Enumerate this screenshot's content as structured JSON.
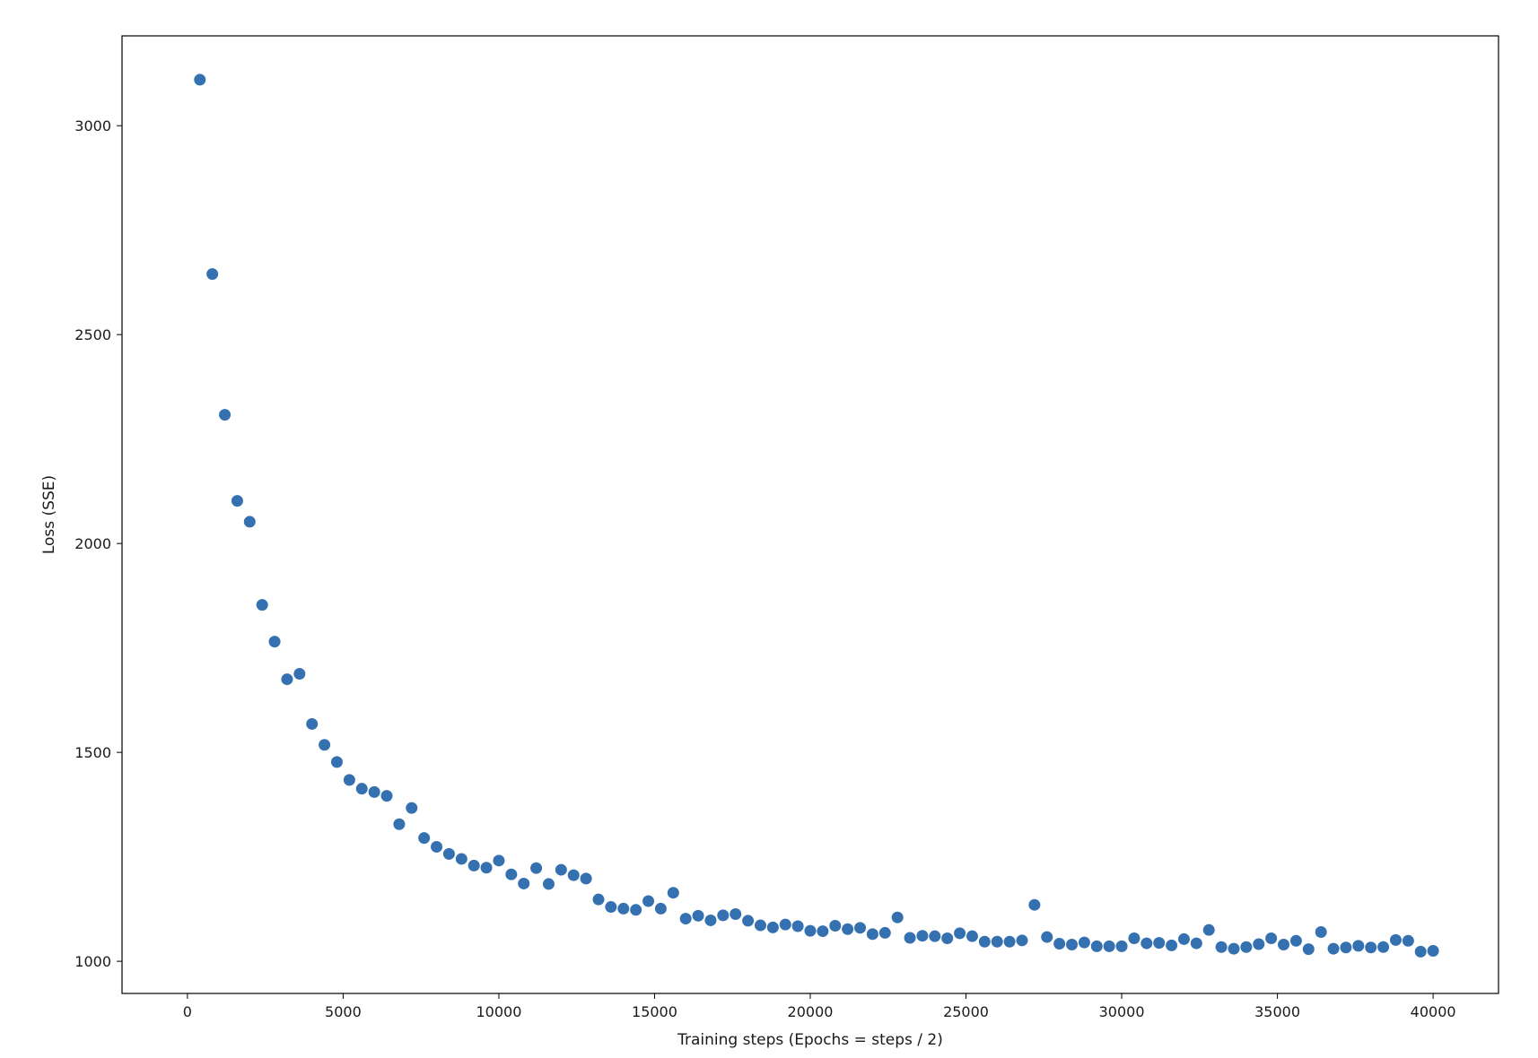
{
  "chart_data": {
    "type": "scatter",
    "title": "",
    "xlabel": "Training steps (Epochs = steps / 2)",
    "ylabel": "Loss (SSE)",
    "xlim": [
      -2100,
      42100
    ],
    "ylim": [
      923,
      3215
    ],
    "xticks": [
      0,
      5000,
      10000,
      15000,
      20000,
      25000,
      30000,
      35000,
      40000
    ],
    "yticks": [
      1000,
      1500,
      2000,
      2500,
      3000
    ],
    "grid": false,
    "legend": "none",
    "marker_color": "#3571b0",
    "x": [
      400,
      800,
      1200,
      1600,
      2000,
      2400,
      2800,
      3200,
      3600,
      4000,
      4400,
      4800,
      5200,
      5600,
      6000,
      6400,
      6800,
      7200,
      7600,
      8000,
      8400,
      8800,
      9200,
      9600,
      10000,
      10400,
      10800,
      11200,
      11600,
      12000,
      12400,
      12800,
      13200,
      13600,
      14000,
      14400,
      14800,
      15200,
      15600,
      16000,
      16400,
      16800,
      17200,
      17600,
      18000,
      18400,
      18800,
      19200,
      19600,
      20000,
      20400,
      20800,
      21200,
      21600,
      22000,
      22400,
      22800,
      23200,
      23600,
      24000,
      24400,
      24800,
      25200,
      25600,
      26000,
      26400,
      26800,
      27200,
      27600,
      28000,
      28400,
      28800,
      29200,
      29600,
      30000,
      30400,
      30800,
      31200,
      31600,
      32000,
      32400,
      32800,
      33200,
      33600,
      34000,
      34400,
      34800,
      35200,
      35600,
      36000,
      36400,
      36800,
      37200,
      37600,
      38000,
      38400,
      38800,
      39200,
      39600,
      40000
    ],
    "y": [
      3110,
      2645,
      2308,
      2102,
      2052,
      1853,
      1765,
      1675,
      1688,
      1568,
      1518,
      1477,
      1434,
      1413,
      1405,
      1396,
      1328,
      1367,
      1295,
      1274,
      1257,
      1245,
      1229,
      1224,
      1241,
      1208,
      1186,
      1223,
      1185,
      1219,
      1206,
      1198,
      1148,
      1130,
      1126,
      1123,
      1144,
      1126,
      1164,
      1102,
      1109,
      1098,
      1110,
      1113,
      1097,
      1086,
      1081,
      1088,
      1084,
      1073,
      1072,
      1085,
      1077,
      1080,
      1065,
      1068,
      1105,
      1056,
      1061,
      1060,
      1055,
      1067,
      1060,
      1047,
      1047,
      1047,
      1050,
      1135,
      1058,
      1042,
      1040,
      1045,
      1036,
      1036,
      1036,
      1055,
      1043,
      1044,
      1038,
      1053,
      1043,
      1075,
      1034,
      1030,
      1034,
      1041,
      1055,
      1040,
      1049,
      1029,
      1070,
      1030,
      1033,
      1037,
      1033,
      1034,
      1051,
      1049,
      1023,
      1025
    ]
  }
}
